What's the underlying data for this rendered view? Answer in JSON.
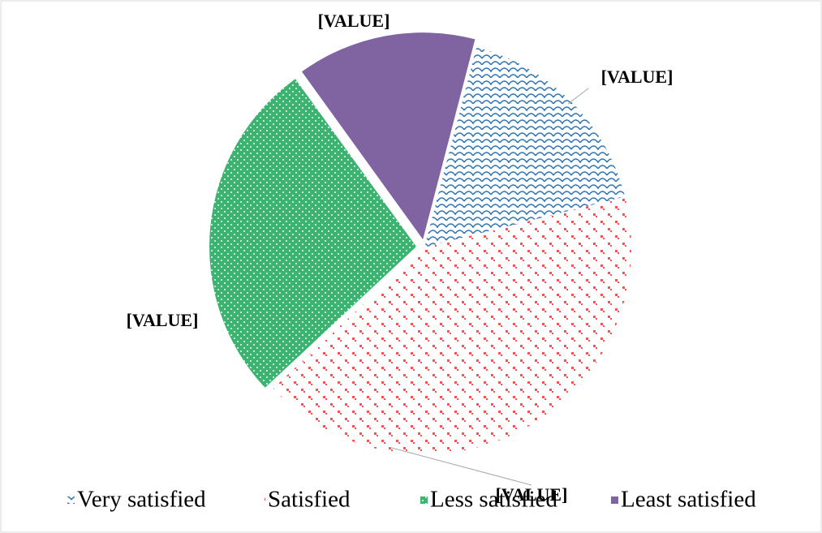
{
  "chart_data": {
    "type": "pie",
    "categories": [
      "Very satisfied",
      "Satisfied",
      "Less satisfied",
      "Least satisfied"
    ],
    "values": [
      17,
      42,
      27,
      14
    ],
    "value_labels": [
      "[VALUE]",
      "[VALUE]",
      "[VALUE]",
      "[VALUE]"
    ],
    "colors": [
      "#2e75b6",
      "#ff5050",
      "#3cb371",
      "#8064a2"
    ],
    "legend": "bottom"
  }
}
